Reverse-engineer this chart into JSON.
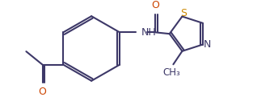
{
  "background_color": "#ffffff",
  "line_color": "#3d3868",
  "atom_colors": {
    "O": "#cc4400",
    "N": "#3d3868",
    "S": "#cc8800",
    "C": "#3d3868"
  },
  "line_width": 1.5,
  "font_size": 9,
  "figsize": [
    3.18,
    1.21
  ],
  "dpi": 100
}
